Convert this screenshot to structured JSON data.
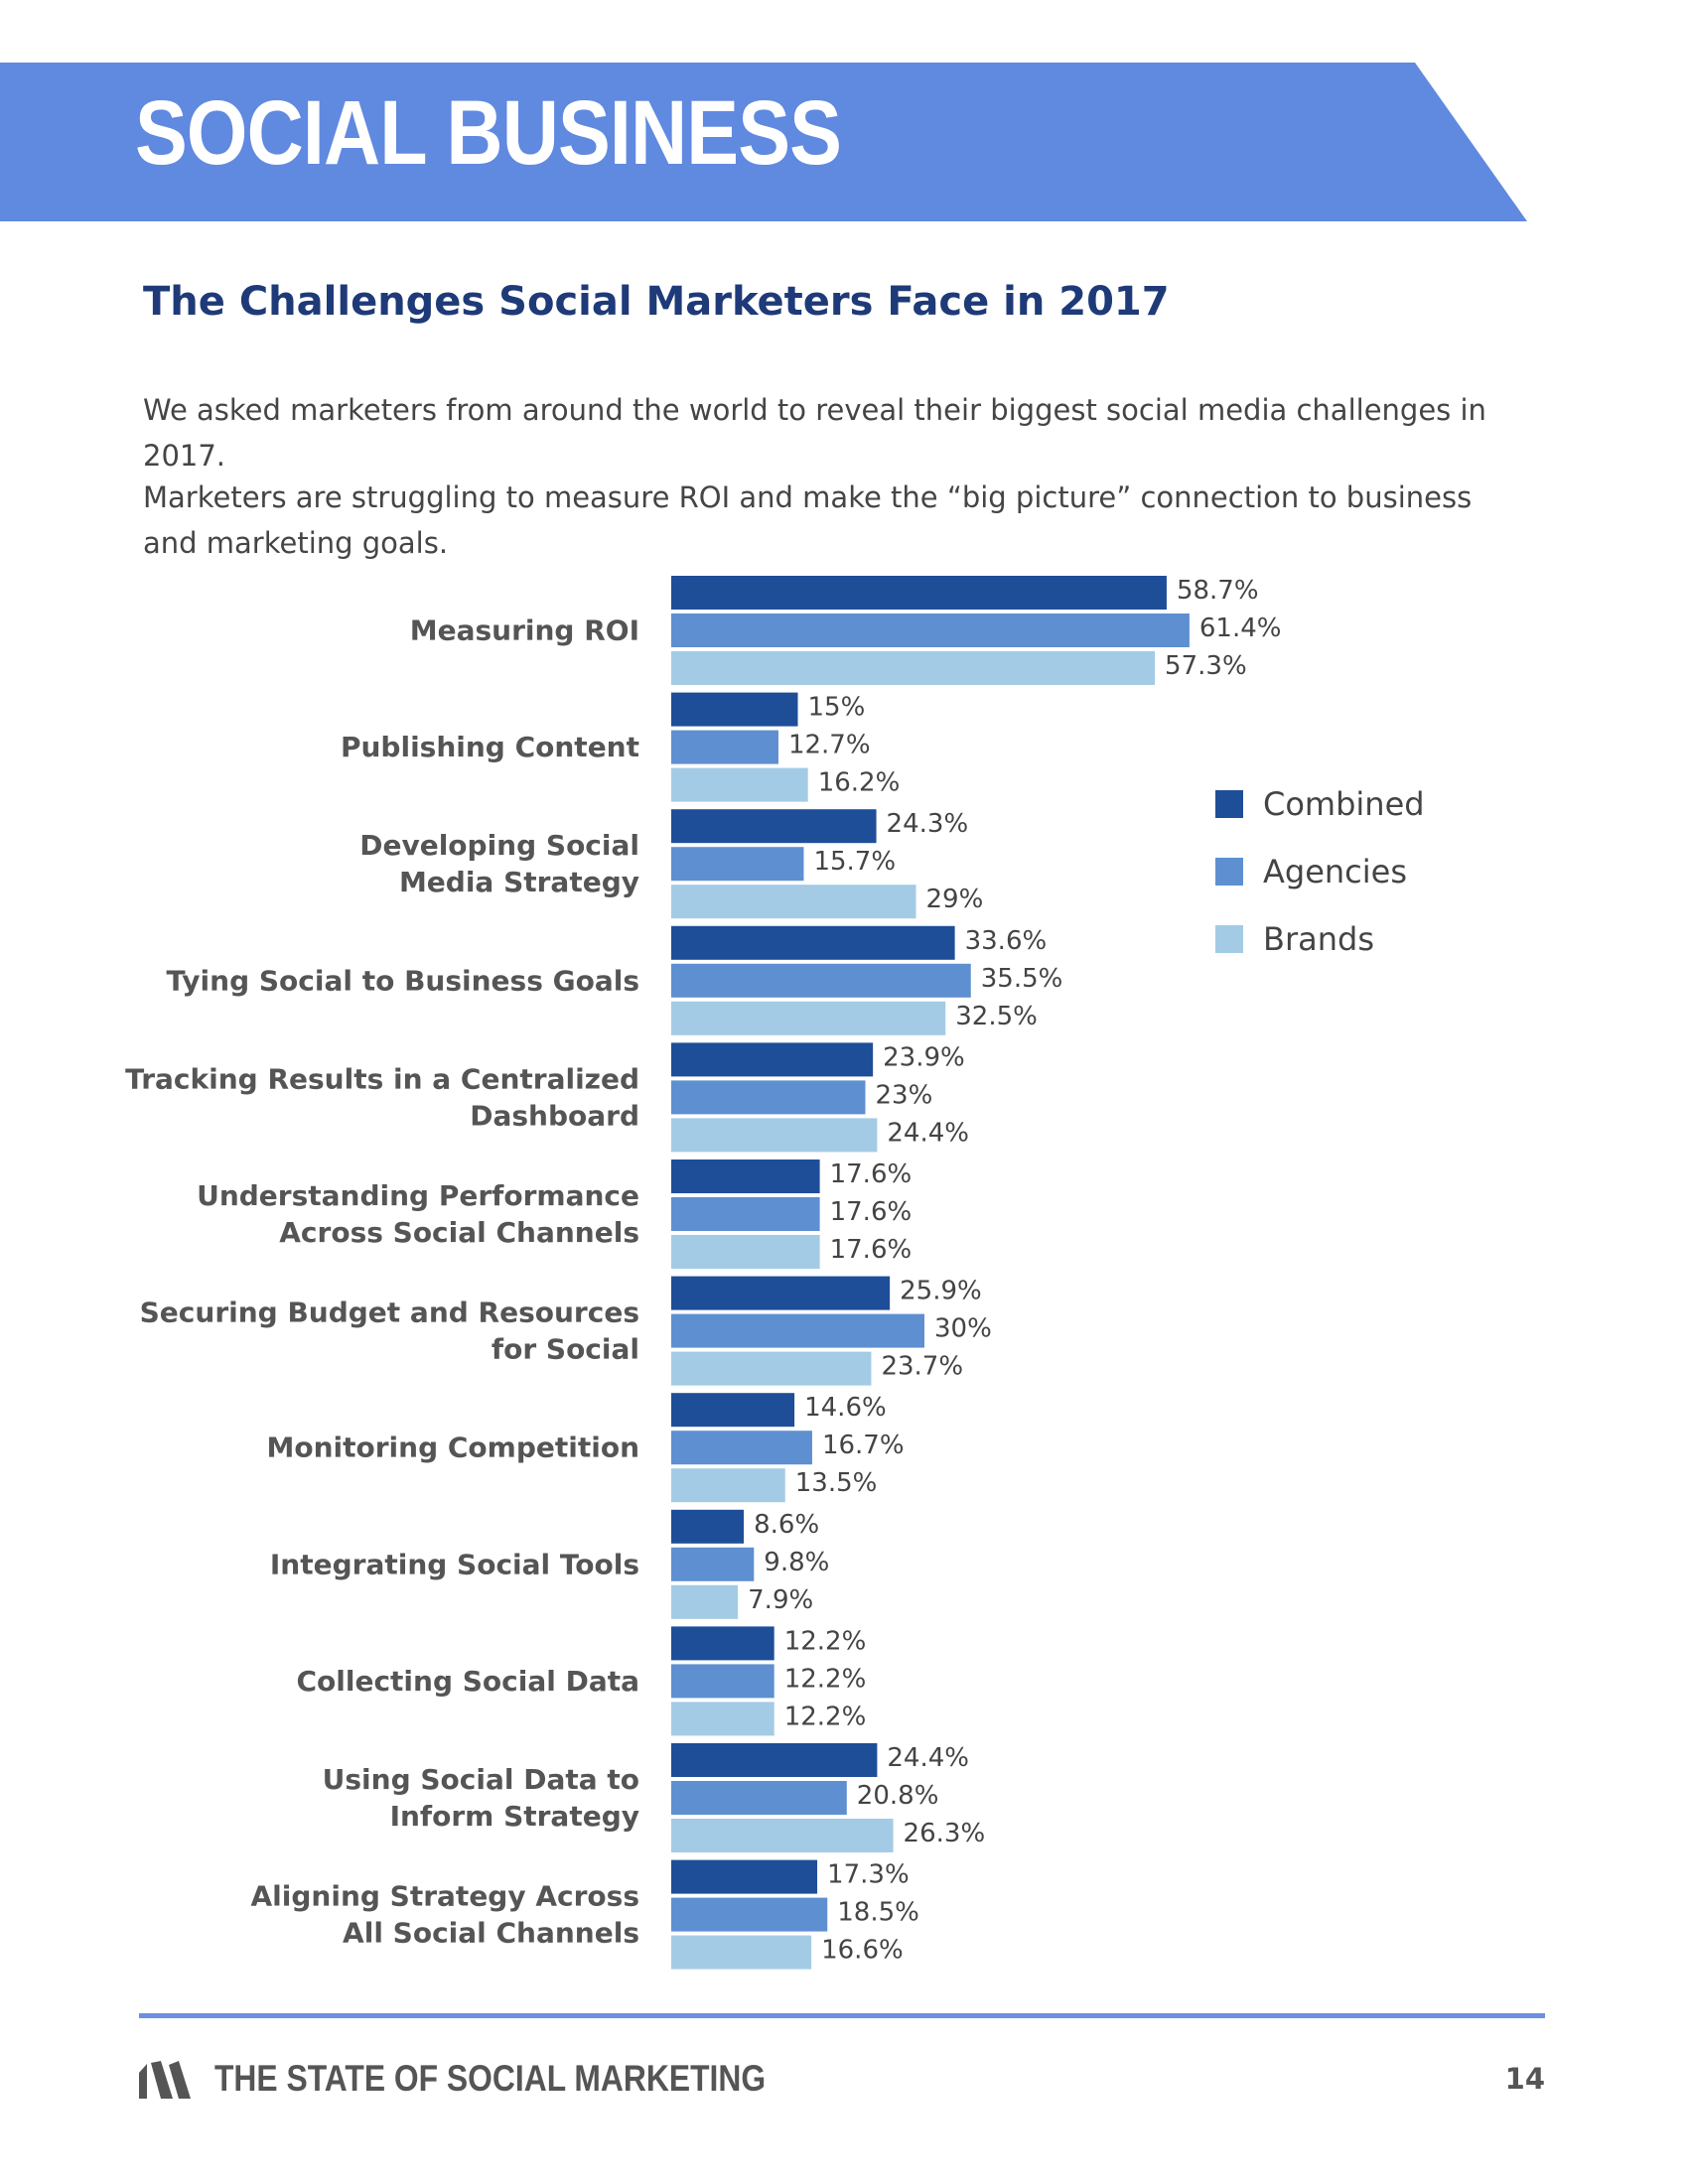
{
  "header": {
    "banner_title": "SOCIAL BUSINESS",
    "page_title": "The Challenges Social Marketers Face in 2017",
    "intro_1": "We asked marketers from around the world to reveal their biggest social media challenges in 2017.",
    "intro_2": "Marketers are struggling to measure ROI and make the “big picture” connection to business and marketing goals.",
    "banner_color": "#6089e0",
    "title_color": "#1e3a78"
  },
  "chart_data": {
    "type": "bar",
    "orientation": "horizontal",
    "title": "",
    "xlabel": "",
    "ylabel": "",
    "xlim": [
      0,
      100
    ],
    "grid": false,
    "legend_position": "right",
    "categories": [
      [
        "Measuring ROI"
      ],
      [
        "Publishing Content"
      ],
      [
        "Developing Social",
        "Media Strategy"
      ],
      [
        "Tying Social to Business Goals"
      ],
      [
        "Tracking Results in a Centralized",
        "Dashboard"
      ],
      [
        "Understanding Performance",
        "Across Social Channels"
      ],
      [
        "Securing Budget and Resources",
        "for Social"
      ],
      [
        "Monitoring Competition"
      ],
      [
        "Integrating Social Tools"
      ],
      [
        "Collecting Social Data"
      ],
      [
        "Using Social Data to",
        "Inform Strategy"
      ],
      [
        "Aligning Strategy Across",
        "All Social Channels"
      ]
    ],
    "series": [
      {
        "name": "Combined",
        "color": "#1f4e99",
        "values": [
          58.7,
          15,
          24.3,
          33.6,
          23.9,
          17.6,
          25.9,
          14.6,
          8.6,
          12.2,
          24.4,
          17.3
        ],
        "labels": [
          "58.7%",
          "15%",
          "24.3%",
          "33.6%",
          "23.9%",
          "17.6%",
          "25.9%",
          "14.6%",
          "8.6%",
          "12.2%",
          "24.4%",
          "17.3%"
        ]
      },
      {
        "name": "Agencies",
        "color": "#5e8fd0",
        "values": [
          61.4,
          12.7,
          15.7,
          35.5,
          23,
          17.6,
          30,
          16.7,
          9.8,
          12.2,
          20.8,
          18.5
        ],
        "labels": [
          "61.4%",
          "12.7%",
          "15.7%",
          "35.5%",
          "23%",
          "17.6%",
          "30%",
          "16.7%",
          "9.8%",
          "12.2%",
          "20.8%",
          "18.5%"
        ]
      },
      {
        "name": "Brands",
        "color": "#a3cbe5",
        "values": [
          57.3,
          16.2,
          29,
          32.5,
          24.4,
          17.6,
          23.7,
          13.5,
          7.9,
          12.2,
          26.3,
          16.6
        ],
        "labels": [
          "57.3%",
          "16.2%",
          "29%",
          "32.5%",
          "24.4%",
          "17.6%",
          "23.7%",
          "13.5%",
          "7.9%",
          "12.2%",
          "26.3%",
          "16.6%"
        ]
      }
    ]
  },
  "footer": {
    "title": "THE STATE OF SOCIAL MARKETING",
    "page_number": "14",
    "logo_icon": "sprout-social-logo-icon",
    "rule_color": "#6c90e0"
  }
}
